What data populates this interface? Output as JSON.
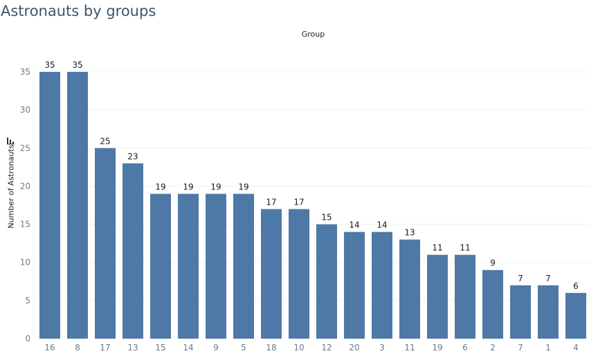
{
  "title": "Astronauts by groups",
  "column_header": "Group",
  "icons": {
    "sort": "sort-icon"
  },
  "colors": {
    "bar": "#4e79a7",
    "title": "#3e5566",
    "tick": "#6a7b8a",
    "label": "#1a1a1a"
  },
  "chart_data": {
    "type": "bar",
    "title": "Astronauts by groups",
    "xlabel": "Group",
    "ylabel": "Number of Astronauts",
    "categories": [
      "16",
      "8",
      "17",
      "13",
      "15",
      "14",
      "9",
      "5",
      "18",
      "10",
      "12",
      "20",
      "3",
      "11",
      "19",
      "6",
      "2",
      "7",
      "1",
      "4"
    ],
    "values": [
      35,
      35,
      25,
      23,
      19,
      19,
      19,
      19,
      17,
      17,
      15,
      14,
      14,
      13,
      11,
      11,
      9,
      7,
      7,
      6
    ],
    "yticks": [
      0,
      5,
      10,
      15,
      20,
      25,
      30,
      35
    ],
    "ylim": [
      0,
      35
    ],
    "grid": true,
    "data_labels": true
  }
}
